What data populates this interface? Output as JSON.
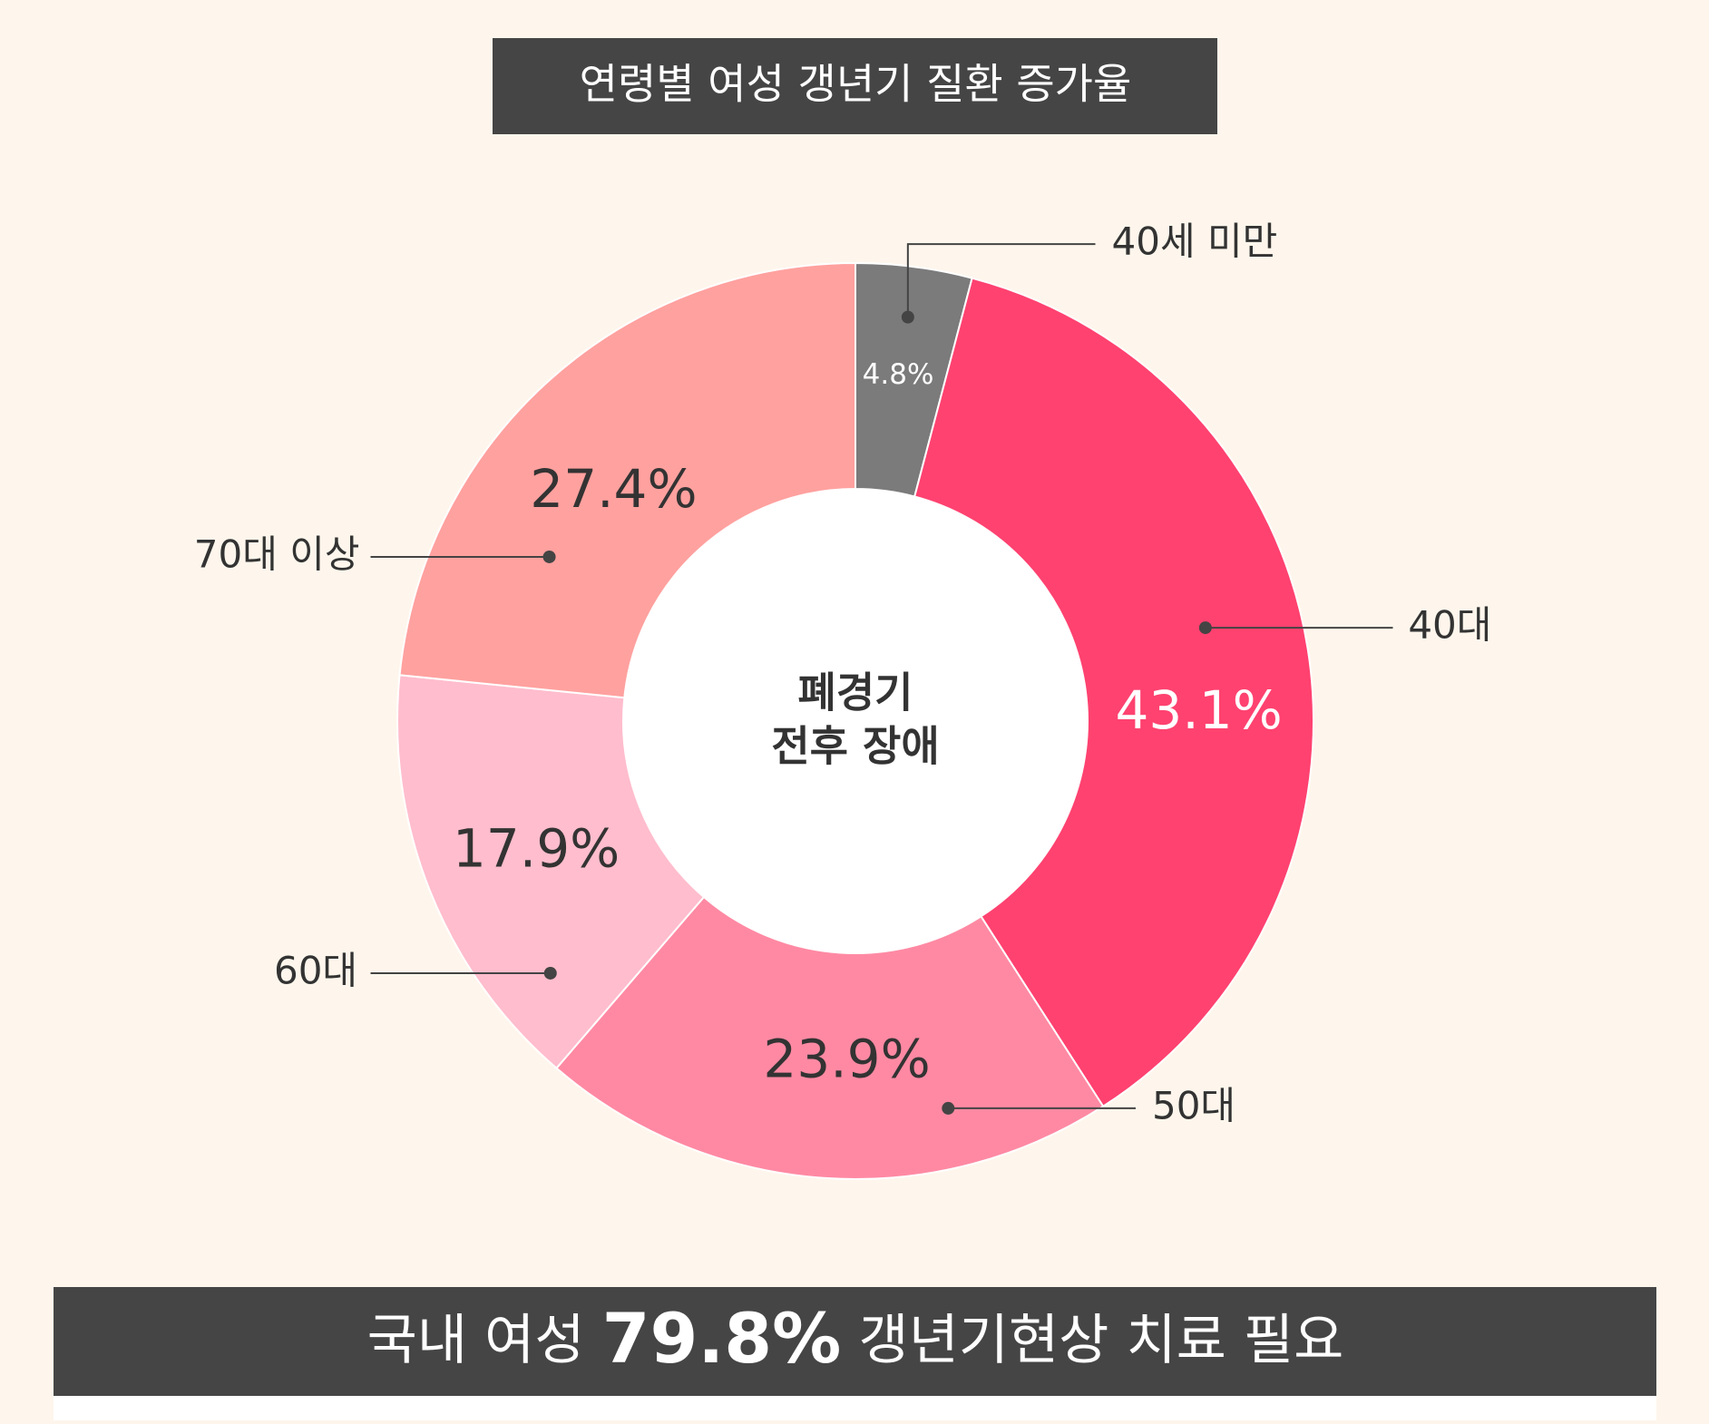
{
  "chart_data": {
    "type": "donut",
    "title": "연령별 여성 갱년기 질환 증가율",
    "center_text": [
      "폐경기",
      "전후 장애"
    ],
    "categories": [
      "40세 미만",
      "40대",
      "50대",
      "60대",
      "70대 이상"
    ],
    "values": [
      4.8,
      43.1,
      23.9,
      17.9,
      27.4
    ],
    "value_labels": [
      "4.8%",
      "43.1%",
      "23.9%",
      "17.9%",
      "27.4%"
    ],
    "colors": [
      "#7b7b7b",
      "#ff4270",
      "#ff89a3",
      "#ffbdcd",
      "#ffa19f"
    ]
  },
  "banner": {
    "prefix": "국내 여성",
    "highlight": "79.8%",
    "suffix": "갱년기현상 치료 필요"
  }
}
